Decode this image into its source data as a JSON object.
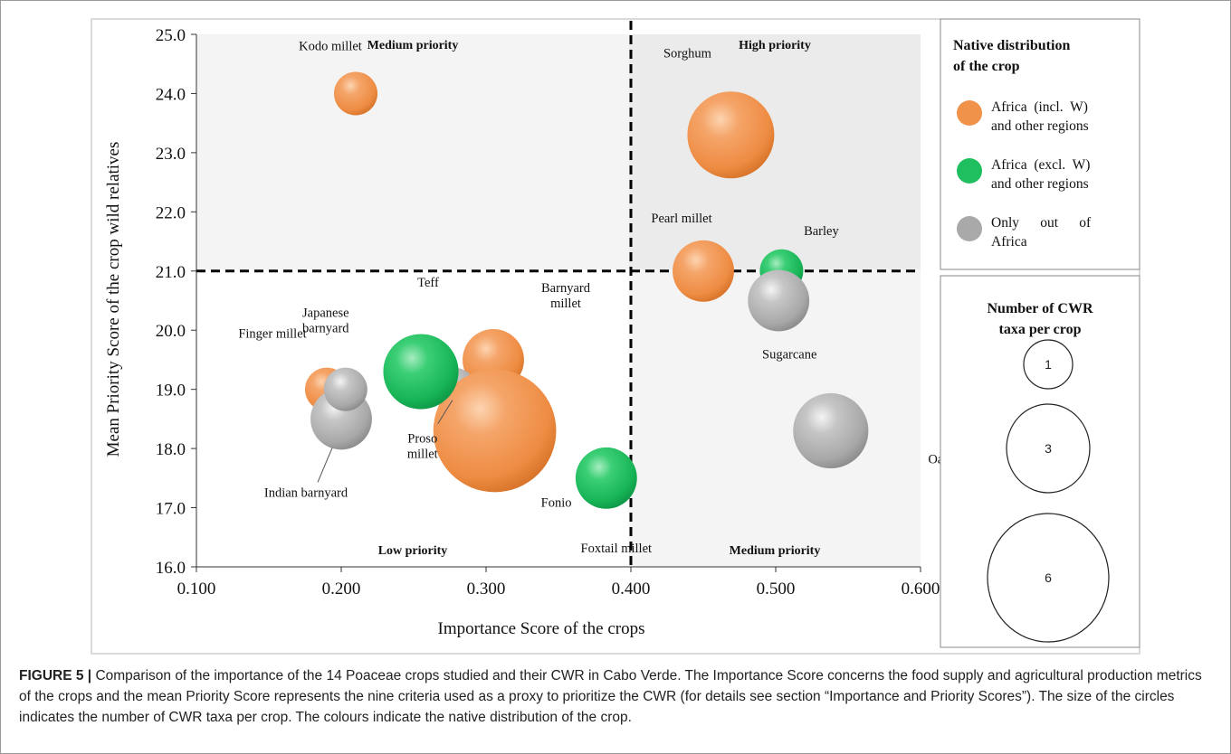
{
  "chart_data": {
    "type": "bubble",
    "xlabel": "Importance Score of the crops",
    "ylabel": "Mean Priority Score of the crop wild relatives",
    "xlim": [
      0.1,
      0.6
    ],
    "ylim": [
      16.0,
      25.0
    ],
    "x_ticks": [
      "0.100",
      "0.200",
      "0.300",
      "0.400",
      "0.500",
      "0.600"
    ],
    "y_ticks": [
      "16.0",
      "17.0",
      "18.0",
      "19.0",
      "20.0",
      "21.0",
      "22.0",
      "23.0",
      "24.0",
      "25.0"
    ],
    "threshold_x": 0.4,
    "threshold_y": 21.0,
    "quadrants": {
      "top_left": "Medium priority",
      "top_right": "High priority",
      "bottom_left": "Low priority",
      "bottom_right": "Medium priority"
    },
    "groups": [
      {
        "key": "orange",
        "label_lines": [
          "Africa  (incl.  W)",
          "and other regions"
        ],
        "color": "#f0924a"
      },
      {
        "key": "green",
        "label_lines": [
          "Africa  (excl.  W)",
          "and other regions"
        ],
        "color": "#1fbf5f"
      },
      {
        "key": "gray",
        "label_lines": [
          "Only      out      of",
          "Africa"
        ],
        "color": "#a9a9a9"
      }
    ],
    "legend_title_lines": [
      "Native distribution",
      "of the crop"
    ],
    "size_legend_title_lines": [
      "Number of CWR",
      "taxa per crop"
    ],
    "size_legend": [
      1,
      3,
      6
    ],
    "points": [
      {
        "name": "Kodo millet",
        "x": 0.21,
        "y": 24.0,
        "taxa": 1,
        "group": "orange",
        "label_lines": [
          "Kodo millet"
        ]
      },
      {
        "name": "Sorghum",
        "x": 0.469,
        "y": 23.3,
        "taxa": 4,
        "group": "orange",
        "label_lines": [
          "Sorghum"
        ]
      },
      {
        "name": "Pearl millet",
        "x": 0.45,
        "y": 21.0,
        "taxa": 2,
        "group": "orange",
        "label_lines": [
          "Pearl millet"
        ]
      },
      {
        "name": "Barley",
        "x": 0.504,
        "y": 21.0,
        "taxa": 1,
        "group": "green",
        "label_lines": [
          "Barley"
        ]
      },
      {
        "name": "Sugarcane",
        "x": 0.502,
        "y": 20.5,
        "taxa": 2,
        "group": "gray",
        "label_lines": [
          "Sugarcane"
        ]
      },
      {
        "name": "Oat",
        "x": 0.538,
        "y": 18.3,
        "taxa": 3,
        "group": "gray",
        "label_lines": [
          "Oat"
        ]
      },
      {
        "name": "Barnyard millet",
        "x": 0.305,
        "y": 19.5,
        "taxa": 2,
        "group": "orange",
        "label_lines": [
          "Barnyard",
          "millet"
        ]
      },
      {
        "name": "Fonio",
        "x": 0.306,
        "y": 18.3,
        "taxa": 8,
        "group": "orange",
        "label_lines": [
          "Fonio"
        ]
      },
      {
        "name": "Proso millet",
        "x": 0.278,
        "y": 19.0,
        "taxa": 1,
        "group": "gray",
        "label_lines": [
          "Proso",
          "millet"
        ]
      },
      {
        "name": "Teff",
        "x": 0.255,
        "y": 19.3,
        "taxa": 3,
        "group": "green",
        "label_lines": [
          "Teff"
        ]
      },
      {
        "name": "Finger millet",
        "x": 0.19,
        "y": 19.0,
        "taxa": 1,
        "group": "orange",
        "label_lines": [
          "Finger millet"
        ]
      },
      {
        "name": "Indian barnyard",
        "x": 0.2,
        "y": 18.5,
        "taxa": 2,
        "group": "gray",
        "label_lines": [
          "Indian barnyard"
        ]
      },
      {
        "name": "Japanese barnyard",
        "x": 0.203,
        "y": 19.0,
        "taxa": 1,
        "group": "gray",
        "label_lines": [
          "Japanese",
          "barnyard"
        ]
      },
      {
        "name": "Foxtail millet",
        "x": 0.383,
        "y": 17.5,
        "taxa": 2,
        "group": "green",
        "label_lines": [
          "Foxtail millet"
        ]
      }
    ]
  },
  "caption": {
    "figure_label": "FIGURE 5 |",
    "text": " Comparison of the importance of the 14 Poaceae crops studied and their CWR in Cabo Verde. The Importance Score concerns the food supply and agricultural production metrics of the crops and the mean Priority Score represents the nine criteria used as a proxy to prioritize the CWR (for details see section “Importance and Priority Scores”). The size of the circles indicates the number of CWR taxa per crop. The colours indicate the native distribution of the crop."
  }
}
